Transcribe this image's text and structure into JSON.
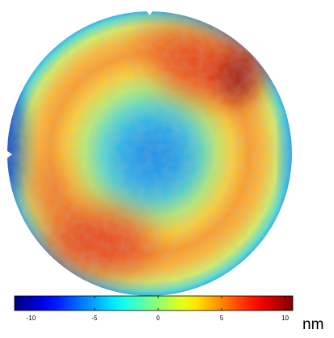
{
  "chart_data": {
    "type": "colormap",
    "colormap": "jet",
    "colorbar_label": "nm",
    "clim": [
      -11.3,
      10.6
    ],
    "ticks": [
      -10,
      -5,
      0,
      5,
      10
    ]
  }
}
